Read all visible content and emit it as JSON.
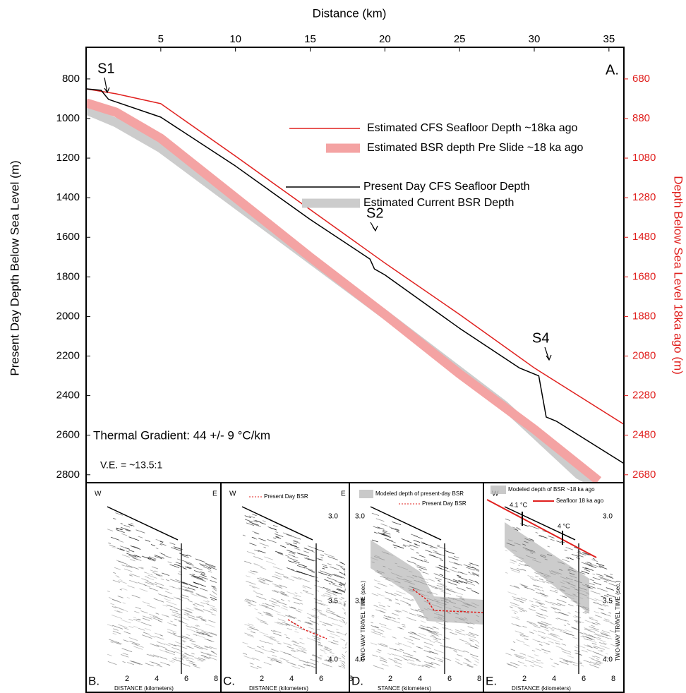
{
  "chart_data": {
    "type": "line",
    "x_label": "Distance (km)",
    "y_label": "Present Day Depth Below Sea Level (m)",
    "y2_label": "Depth Below Sea Level 18ka ago (m)",
    "xlim": [
      0,
      36
    ],
    "xticks": [
      5,
      10,
      15,
      20,
      25,
      30,
      35
    ],
    "ylim": [
      640,
      2840
    ],
    "yticks": [
      800,
      1000,
      1200,
      1400,
      1600,
      1800,
      2000,
      2200,
      2400,
      2600,
      2800
    ],
    "y2lim": [
      520,
      2720
    ],
    "y2ticks": [
      680,
      880,
      1080,
      1280,
      1480,
      1680,
      1880,
      2080,
      2280,
      2480,
      2680
    ],
    "series": [
      {
        "name": "Estimated CFS Seafloor Depth ~18ka ago",
        "color": "#e0201e",
        "x": [
          0,
          2,
          5,
          10,
          15,
          20,
          25,
          30,
          36
        ],
        "values": [
          850,
          875,
          925,
          1190,
          1460,
          1730,
          1990,
          2260,
          2545
        ]
      },
      {
        "name": "Estimated BSR depth Pre Slide ~18 ka ago",
        "color": "#f4a3a3",
        "x": [
          0,
          2,
          5,
          10,
          15,
          20,
          25,
          30,
          34.3
        ],
        "values": [
          921,
          968,
          1100,
          1400,
          1700,
          1990,
          2290,
          2570,
          2830
        ]
      },
      {
        "name": "Present Day CFS Seafloor Depth",
        "color": "#000000",
        "x": [
          0,
          1,
          1.5,
          5,
          10,
          15,
          19,
          19.3,
          20,
          25,
          29,
          30.3,
          30.8,
          31.5,
          36
        ],
        "values": [
          850,
          857,
          903,
          993,
          1240,
          1510,
          1710,
          1760,
          1790,
          2060,
          2260,
          2300,
          2508,
          2530,
          2743
        ]
      },
      {
        "name": "Estimated Current BSR Depth",
        "color": "#cccccc",
        "x": [
          0,
          2,
          5,
          10,
          20,
          28,
          33,
          34
        ],
        "values": [
          957,
          1020,
          1150,
          1430,
          1990,
          2450,
          2800,
          2840
        ]
      }
    ],
    "annotations": [
      "S1",
      "S2",
      "S4",
      "A.",
      "Thermal Gradient:  44 +/- 9 °C/km",
      "V.E. = ~13.5:1"
    ]
  },
  "panels": [
    {
      "label": "B.",
      "west": "W",
      "east": "E",
      "distance_ticks": [
        "2",
        "4",
        "6",
        "8"
      ],
      "distance_label": "DISTANCE   (kilometers)"
    },
    {
      "label": "C.",
      "west": "W",
      "east": "E",
      "legend": [
        "Present Day BSR"
      ],
      "time_ticks": [
        "3.0",
        "3.5",
        "4.0"
      ],
      "distance_ticks": [
        "2",
        "4",
        "6",
        "8"
      ],
      "distance_label": "DISTANCE   (kilometers)"
    },
    {
      "label": "D.",
      "legend": [
        "Modeled depth of present-day BSR",
        "Present Day BSR"
      ],
      "time_ticks": [
        "3.0",
        "3.5",
        "4.0"
      ],
      "time_label": "TWO-WAY TRAVEL TIME (sec.)",
      "distance_ticks": [
        "2",
        "4",
        "6",
        "8"
      ],
      "distance_label": "STANCE   (kilometers)"
    },
    {
      "label": "E.",
      "west": "W",
      "legend": [
        "Modeled depth of BSR ~18 ka ago",
        "Seafloor 18 ka ago"
      ],
      "temps": [
        "4.1 °C",
        "4 °C"
      ],
      "time_ticks": [
        "3.0",
        "3.5",
        "4.0"
      ],
      "time_label": "TWO-WAY TRAVEL TIME (sec.)",
      "distance_ticks": [
        "2",
        "4",
        "6",
        "8"
      ],
      "distance_label": "DISTANCE   (kilometers)"
    }
  ]
}
